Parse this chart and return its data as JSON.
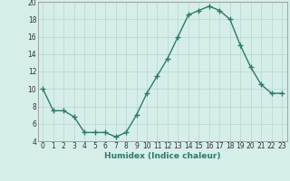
{
  "x": [
    0,
    1,
    2,
    3,
    4,
    5,
    6,
    7,
    8,
    9,
    10,
    11,
    12,
    13,
    14,
    15,
    16,
    17,
    18,
    19,
    20,
    21,
    22,
    23
  ],
  "y": [
    10,
    7.5,
    7.5,
    6.8,
    5,
    5,
    5,
    4.5,
    5,
    7,
    9.5,
    11.5,
    13.5,
    16,
    18.5,
    19,
    19.5,
    19,
    18,
    15,
    12.5,
    10.5,
    9.5,
    9.5
  ],
  "line_color": "#2d7a6a",
  "marker": "+",
  "background_color": "#d6eee9",
  "grid_color": "#bdd8d2",
  "xlabel": "Humidex (Indice chaleur)",
  "ylim": [
    4,
    20
  ],
  "xlim": [
    -0.5,
    23.5
  ],
  "yticks": [
    4,
    6,
    8,
    10,
    12,
    14,
    16,
    18,
    20
  ],
  "xticks": [
    0,
    1,
    2,
    3,
    4,
    5,
    6,
    7,
    8,
    9,
    10,
    11,
    12,
    13,
    14,
    15,
    16,
    17,
    18,
    19,
    20,
    21,
    22,
    23
  ],
  "tick_fontsize": 5.5,
  "xlabel_fontsize": 6.5,
  "line_width": 1.0,
  "marker_size": 4
}
